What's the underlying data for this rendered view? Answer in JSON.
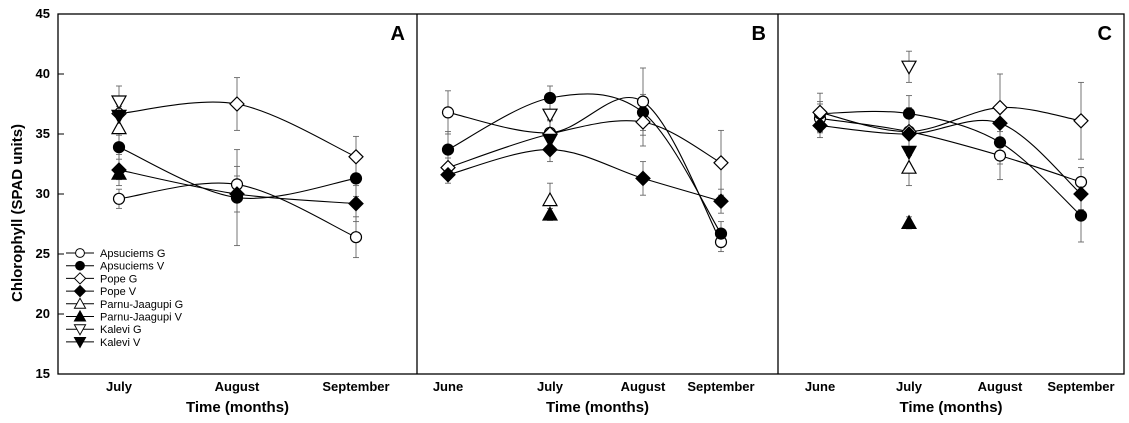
{
  "chart_data": {
    "type": "scatter",
    "ylabel": "Chlorophyll (SPAD units)",
    "xlabel": "Time (months)",
    "ylim": [
      15,
      45
    ],
    "yticks": [
      15,
      20,
      25,
      30,
      35,
      40,
      45
    ],
    "legend_position": "bottom-left of panel A",
    "legend": [
      {
        "name": "Apsuciems G",
        "marker": "circle",
        "fill": "open"
      },
      {
        "name": "Apsuciems V",
        "marker": "circle",
        "fill": "filled"
      },
      {
        "name": "Pope G",
        "marker": "diamond",
        "fill": "open"
      },
      {
        "name": "Pope V",
        "marker": "diamond",
        "fill": "filled"
      },
      {
        "name": "Parnu-Jaagupi G",
        "marker": "triangle-up",
        "fill": "open"
      },
      {
        "name": "Parnu-Jaagupi V",
        "marker": "triangle-up",
        "fill": "filled"
      },
      {
        "name": "Kalevi G",
        "marker": "triangle-down",
        "fill": "open"
      },
      {
        "name": "Kalevi V",
        "marker": "triangle-down",
        "fill": "filled"
      }
    ],
    "panels": [
      {
        "letter": "A",
        "categories": [
          "July",
          "August",
          "September"
        ],
        "series": [
          {
            "name": "Apsuciems G",
            "values": [
              29.6,
              30.8,
              26.4
            ],
            "errors": [
              0.8,
              1.5,
              1.7
            ],
            "connected": true
          },
          {
            "name": "Apsuciems V",
            "values": [
              33.9,
              29.7,
              31.3
            ],
            "errors": [
              1.0,
              4.0,
              1.5
            ],
            "connected": true
          },
          {
            "name": "Pope G",
            "values": [
              36.7,
              37.5,
              33.1
            ],
            "errors": [
              1.2,
              2.2,
              1.7
            ],
            "connected": true
          },
          {
            "name": "Pope V",
            "values": [
              32.0,
              30.0,
              29.2
            ],
            "errors": [
              1.3,
              1.5,
              1.5
            ],
            "connected": true
          },
          {
            "name": "Parnu-Jaagupi G",
            "values": [
              35.5,
              null,
              null
            ],
            "errors": [
              1.5,
              null,
              null
            ],
            "connected": false
          },
          {
            "name": "Parnu-Jaagupi V",
            "values": [
              31.7,
              null,
              null
            ],
            "errors": [
              0.5,
              null,
              null
            ],
            "connected": false
          },
          {
            "name": "Kalevi G",
            "values": [
              37.7,
              null,
              null
            ],
            "errors": [
              1.3,
              null,
              null
            ],
            "connected": false
          },
          {
            "name": "Kalevi V",
            "values": [
              36.5,
              null,
              null
            ],
            "errors": [
              0.8,
              null,
              null
            ],
            "connected": false
          }
        ]
      },
      {
        "letter": "B",
        "categories": [
          "June",
          "July",
          "August",
          "September"
        ],
        "series": [
          {
            "name": "Apsuciems G",
            "values": [
              36.8,
              35.1,
              37.7,
              26.0
            ],
            "errors": [
              1.8,
              1.0,
              2.8,
              0.8
            ],
            "connected": true
          },
          {
            "name": "Apsuciems V",
            "values": [
              33.7,
              38.0,
              36.8,
              26.7
            ],
            "errors": [
              1.5,
              1.0,
              1.5,
              1.0
            ],
            "connected": true
          },
          {
            "name": "Pope G",
            "values": [
              32.2,
              35.0,
              36.0,
              32.6
            ],
            "errors": [
              0.8,
              1.2,
              2.0,
              2.7
            ],
            "connected": true
          },
          {
            "name": "Pope V",
            "values": [
              31.6,
              33.7,
              31.3,
              29.4
            ],
            "errors": [
              0.7,
              1.0,
              1.4,
              1.0
            ],
            "connected": true
          },
          {
            "name": "Parnu-Jaagupi G",
            "values": [
              null,
              29.5,
              null,
              null
            ],
            "errors": [
              null,
              1.4,
              null,
              null
            ],
            "connected": false
          },
          {
            "name": "Parnu-Jaagupi V",
            "values": [
              null,
              28.3,
              null,
              null
            ],
            "errors": [
              null,
              0.5,
              null,
              null
            ],
            "connected": false
          },
          {
            "name": "Kalevi G",
            "values": [
              null,
              36.6,
              null,
              null
            ],
            "errors": [
              null,
              1.2,
              null,
              null
            ],
            "connected": false
          },
          {
            "name": "Kalevi V",
            "values": [
              null,
              34.5,
              null,
              null
            ],
            "errors": [
              null,
              1.0,
              null,
              null
            ],
            "connected": false
          }
        ]
      },
      {
        "letter": "C",
        "categories": [
          "June",
          "July",
          "August",
          "September"
        ],
        "series": [
          {
            "name": "Apsuciems G",
            "values": [
              36.3,
              35.2,
              33.2,
              31.0
            ],
            "errors": [
              1.2,
              2.0,
              2.0,
              1.2
            ],
            "connected": true
          },
          {
            "name": "Apsuciems V",
            "values": [
              36.7,
              36.7,
              34.3,
              28.2
            ],
            "errors": [
              1.0,
              1.5,
              1.8,
              2.2
            ],
            "connected": true
          },
          {
            "name": "Pope G",
            "values": [
              36.8,
              35.2,
              37.2,
              36.1
            ],
            "errors": [
              1.6,
              1.8,
              2.8,
              3.2
            ],
            "connected": true
          },
          {
            "name": "Pope V",
            "values": [
              35.7,
              35.0,
              35.9,
              30.0
            ],
            "errors": [
              1.0,
              1.5,
              1.5,
              1.3
            ],
            "connected": true
          },
          {
            "name": "Parnu-Jaagupi G",
            "values": [
              null,
              32.2,
              null,
              null
            ],
            "errors": [
              null,
              1.5,
              null,
              null
            ],
            "connected": false
          },
          {
            "name": "Parnu-Jaagupi V",
            "values": [
              null,
              27.6,
              null,
              null
            ],
            "errors": [
              null,
              0.5,
              null,
              null
            ],
            "connected": false
          },
          {
            "name": "Kalevi G",
            "values": [
              null,
              40.6,
              null,
              null
            ],
            "errors": [
              null,
              1.3,
              null,
              null
            ],
            "connected": false
          },
          {
            "name": "Kalevi V",
            "values": [
              null,
              33.5,
              null,
              null
            ],
            "errors": [
              null,
              1.2,
              null,
              null
            ],
            "connected": false
          }
        ]
      }
    ]
  }
}
